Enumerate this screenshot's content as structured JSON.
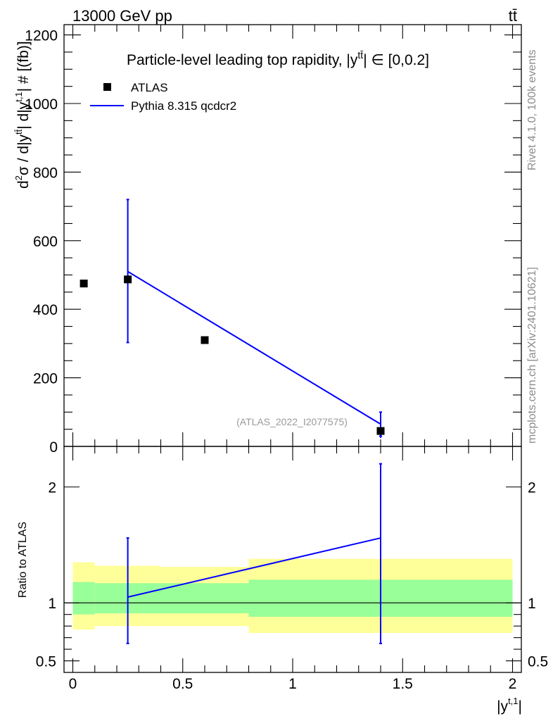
{
  "header": {
    "energy_label": "13000 GeV pp",
    "process_label": "tt̄"
  },
  "side_labels": {
    "rivet": "Rivet 4.1.0,  100k events",
    "mcplots": "mcplots.cern.ch [arXiv:2401.10621]"
  },
  "colors": {
    "mc_line": "#0000ff",
    "band_outer": "#ffff99",
    "band_inner": "#99ff99",
    "data_marker": "#000000",
    "side_text": "#8c8c8c"
  },
  "chart_data": [
    {
      "type": "scatter",
      "panel": "main",
      "title_parts": [
        "Particle-level leading top rapidity, |y",
        "tt̄",
        "| ∈ [0,0.2]"
      ],
      "ylabel_parts": [
        "d",
        "2",
        "σ / d|y",
        "tt̄",
        "| d|y",
        "t,1",
        "| # [(fb)]"
      ],
      "xlim": [
        -0.04,
        2.04
      ],
      "ylim": [
        0,
        1230
      ],
      "yticks": [
        0,
        200,
        400,
        600,
        800,
        1000,
        1200
      ],
      "watermark": "(ATLAS_2022_I2077575)",
      "legend": {
        "position": "top-left",
        "entries": [
          {
            "label": "ATLAS",
            "kind": "marker"
          },
          {
            "label": "Pythia 8.315 qcdcr2",
            "kind": "line"
          }
        ]
      },
      "series": [
        {
          "name": "ATLAS",
          "x": [
            0.05,
            0.25,
            0.6,
            1.4
          ],
          "y": [
            475,
            487,
            310,
            45
          ],
          "yerr_low": [
            null,
            null,
            null,
            20
          ],
          "yerr_high": [
            null,
            null,
            null,
            55
          ]
        },
        {
          "name": "Pythia 8.315 qcdcr2",
          "x": [
            0.25,
            1.4
          ],
          "y": [
            510,
            65
          ],
          "yerr_low": [
            207,
            35
          ],
          "yerr_high": [
            210,
            35
          ]
        }
      ]
    },
    {
      "type": "line",
      "panel": "ratio",
      "ylabel": "Ratio to ATLAS",
      "xlabel_parts": [
        "|y",
        "t,1",
        "|"
      ],
      "ylim": [
        0.4,
        2.35
      ],
      "yticks": [
        0.5,
        1,
        2
      ],
      "ytick_labels": [
        "0.5",
        "1",
        "2"
      ],
      "xticks": [
        0,
        0.5,
        1,
        1.5,
        2
      ],
      "xtick_labels": [
        "0",
        "0.5",
        "1",
        "1.5",
        "2"
      ],
      "reference": 1.0,
      "bands": [
        {
          "x0": 0.0,
          "x1": 0.1,
          "outer": [
            0.77,
            1.35
          ],
          "inner": [
            0.9,
            1.18
          ]
        },
        {
          "x0": 0.1,
          "x1": 0.4,
          "outer": [
            0.8,
            1.32
          ],
          "inner": [
            0.91,
            1.17
          ]
        },
        {
          "x0": 0.4,
          "x1": 0.8,
          "outer": [
            0.8,
            1.31
          ],
          "inner": [
            0.91,
            1.17
          ]
        },
        {
          "x0": 0.8,
          "x1": 2.0,
          "outer": [
            0.74,
            1.38
          ],
          "inner": [
            0.88,
            1.2
          ]
        }
      ],
      "series": [
        {
          "name": "Pythia 8.315 qcdcr2",
          "x": [
            0.25,
            1.4
          ],
          "y": [
            1.05,
            1.56
          ],
          "ylow": [
            0.65,
            0.65
          ],
          "yhigh": [
            1.56,
            2.2
          ]
        }
      ]
    }
  ]
}
